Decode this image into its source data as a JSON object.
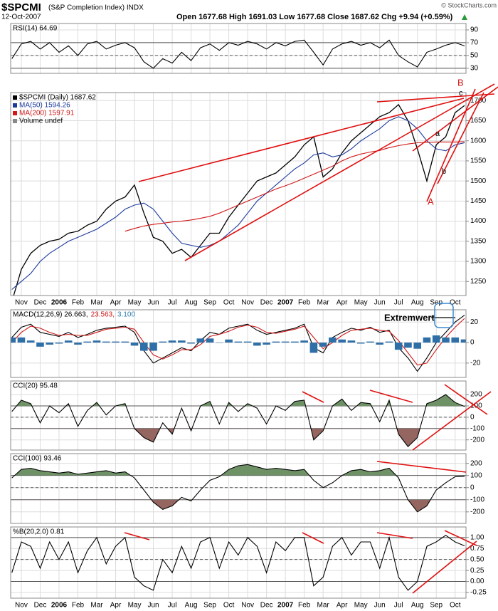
{
  "header": {
    "symbol": "$SPCMI",
    "name": "(S&P Completion Index) INDX",
    "date": "12-Oct-2007",
    "quote": "Open 1677.68 High 1691.03 Low 1677.68 Close 1687.62 Chg +9.94 (+0.59%)",
    "source": "© StockCharts.com"
  },
  "chart_data": [
    {
      "type": "line",
      "label": "RSI(14) 64.69",
      "ylim": [
        22,
        100
      ],
      "yticks": [
        30,
        50,
        70,
        90
      ],
      "grid": true,
      "hlines": [
        {
          "value": 70
        },
        {
          "value": 50,
          "dashed": true
        },
        {
          "value": 30
        }
      ],
      "series": [
        {
          "name": "RSI(14)",
          "color": "#000000",
          "values": [
            45,
            68,
            72,
            60,
            70,
            55,
            65,
            50,
            68,
            72,
            60,
            66,
            70,
            62,
            40,
            30,
            45,
            38,
            55,
            42,
            62,
            68,
            58,
            70,
            66,
            72,
            68,
            60,
            70,
            65,
            72,
            74,
            55,
            35,
            60,
            68,
            72,
            66,
            70,
            62,
            74,
            50,
            40,
            32,
            55,
            60,
            66,
            70,
            65
          ]
        }
      ]
    },
    {
      "type": "line",
      "ylim": [
        1215,
        1720
      ],
      "yticks": [
        1250,
        1300,
        1350,
        1400,
        1450,
        1500,
        1550,
        1600,
        1650,
        1700
      ],
      "grid": true,
      "categories": [
        null,
        "Nov",
        null,
        "Dec",
        null,
        "2006",
        null,
        "Feb",
        null,
        "Mar",
        null,
        "Apr",
        null,
        "May",
        null,
        "Jun",
        null,
        "Jul",
        null,
        "Aug",
        null,
        "Sep",
        null,
        "Oct",
        null,
        "Nov",
        null,
        "Dec",
        null,
        "2007",
        null,
        "Feb",
        null,
        "Mar",
        null,
        "Apr",
        null,
        "May",
        null,
        "Jun",
        null,
        "Jul",
        null,
        "Aug",
        null,
        "Sep",
        null,
        "Oct",
        null
      ],
      "legend_extra": "Volume undef",
      "annotations": [
        "A",
        "B",
        "a",
        "b",
        "c"
      ],
      "series": [
        {
          "name": "$SPCMI (Daily) 1687.62",
          "color": "#000000",
          "values": [
            1200,
            1280,
            1320,
            1340,
            1350,
            1355,
            1370,
            1375,
            1390,
            1400,
            1430,
            1450,
            1460,
            1490,
            1420,
            1360,
            1350,
            1320,
            1330,
            1310,
            1340,
            1370,
            1370,
            1410,
            1440,
            1470,
            1500,
            1510,
            1520,
            1540,
            1560,
            1590,
            1610,
            1510,
            1530,
            1570,
            1600,
            1620,
            1640,
            1660,
            1670,
            1690,
            1650,
            1580,
            1500,
            1590,
            1610,
            1670,
            1688
          ]
        },
        {
          "name": "MA(50) 1594.26",
          "color": "#1c3a9c",
          "values": [
            1230,
            1250,
            1270,
            1300,
            1320,
            1335,
            1350,
            1360,
            1370,
            1380,
            1395,
            1410,
            1430,
            1440,
            1445,
            1430,
            1400,
            1370,
            1345,
            1340,
            1335,
            1340,
            1350,
            1370,
            1390,
            1420,
            1450,
            1470,
            1490,
            1510,
            1530,
            1545,
            1565,
            1570,
            1560,
            1565,
            1580,
            1600,
            1615,
            1630,
            1650,
            1660,
            1650,
            1630,
            1600,
            1580,
            1575,
            1590,
            1595
          ]
        },
        {
          "name": "MA(200) 1597.91",
          "color": "#d01818",
          "values": [
            null,
            null,
            null,
            null,
            null,
            null,
            null,
            null,
            null,
            null,
            null,
            null,
            1375,
            1382,
            1388,
            1392,
            1395,
            1398,
            1400,
            1403,
            1407,
            1412,
            1420,
            1430,
            1440,
            1450,
            1460,
            1470,
            1480,
            1488,
            1497,
            1507,
            1517,
            1527,
            1537,
            1550,
            1560,
            1567,
            1572,
            1576,
            1583,
            1588,
            1592,
            1595,
            1596,
            1597,
            1597,
            1597,
            1598
          ]
        }
      ]
    },
    {
      "type": "line",
      "ylim": [
        -34,
        32
      ],
      "yticks": [
        -20,
        0,
        20
      ],
      "grid": true,
      "label_parts": [
        {
          "text": "MACD(12,26,9) 26.663,",
          "color": "#000000"
        },
        {
          "text": "23.563,",
          "color": "#d01818"
        },
        {
          "text": "3.100",
          "color": "#2f7fb0"
        }
      ],
      "annotations": [
        "Extremwert"
      ],
      "series": [
        {
          "name": "MACD",
          "color": "#000000",
          "style": "bar_none",
          "values": [
            5,
            15,
            18,
            10,
            8,
            6,
            10,
            5,
            8,
            12,
            14,
            15,
            16,
            10,
            -8,
            -20,
            -15,
            -10,
            -5,
            -8,
            2,
            10,
            8,
            14,
            16,
            18,
            12,
            8,
            10,
            12,
            14,
            18,
            -5,
            -10,
            5,
            10,
            14,
            12,
            15,
            10,
            12,
            -5,
            -15,
            -28,
            -15,
            0,
            10,
            20,
            26.7
          ]
        },
        {
          "name": "Signal",
          "color": "#d01818",
          "values": [
            0,
            10,
            16,
            14,
            10,
            7,
            8,
            7,
            7,
            10,
            13,
            14,
            15,
            13,
            0,
            -12,
            -16,
            -12,
            -7,
            -7,
            -2,
            6,
            8,
            11,
            15,
            17,
            15,
            10,
            9,
            11,
            13,
            16,
            5,
            -6,
            0,
            7,
            12,
            13,
            14,
            12,
            11,
            2,
            -10,
            -22,
            -20,
            -7,
            5,
            15,
            23.6
          ]
        },
        {
          "name": "Histogram",
          "color": "#2f6fa8",
          "style": "bar",
          "values": [
            5,
            5,
            2,
            -4,
            -2,
            -1,
            2,
            -2,
            1,
            2,
            1,
            1,
            1,
            -3,
            -8,
            -8,
            1,
            2,
            2,
            -1,
            4,
            4,
            0,
            3,
            1,
            1,
            -3,
            -2,
            1,
            1,
            1,
            2,
            -10,
            -4,
            5,
            3,
            2,
            -1,
            1,
            -2,
            1,
            -7,
            -5,
            -6,
            5,
            7,
            5,
            5,
            3.1
          ]
        }
      ]
    },
    {
      "type": "line",
      "label": "CCI(20) 95.48",
      "ylim": [
        -290,
        320
      ],
      "yticks": [
        -200,
        -100,
        0,
        100,
        200
      ],
      "grid": true,
      "hlines": [
        {
          "value": 100
        },
        {
          "value": 0,
          "dashed": true
        },
        {
          "value": -100
        }
      ],
      "fill_above": {
        "level": 100,
        "color": "#6e9266"
      },
      "fill_below": {
        "level": -100,
        "color": "#94665f"
      },
      "series": [
        {
          "name": "CCI(20)",
          "color": "#000000",
          "values": [
            50,
            150,
            120,
            -50,
            100,
            40,
            120,
            -80,
            60,
            130,
            20,
            100,
            120,
            -100,
            -180,
            -220,
            -50,
            -150,
            80,
            -120,
            100,
            140,
            -60,
            130,
            50,
            120,
            80,
            -60,
            100,
            60,
            140,
            150,
            -200,
            -120,
            100,
            160,
            60,
            130,
            120,
            -40,
            150,
            -150,
            -260,
            -180,
            120,
            150,
            200,
            130,
            95
          ]
        }
      ]
    },
    {
      "type": "line",
      "label": "CCI(100) 93.46",
      "ylim": [
        -295,
        280
      ],
      "yticks": [
        -200,
        -100,
        0,
        100,
        200
      ],
      "grid": true,
      "hlines": [
        {
          "value": 100
        },
        {
          "value": 0,
          "dashed": true
        },
        {
          "value": -100
        }
      ],
      "fill_above": {
        "level": 100,
        "color": "#6e9266"
      },
      "fill_below": {
        "level": -100,
        "color": "#94665f"
      },
      "series": [
        {
          "name": "CCI(100)",
          "color": "#000000",
          "values": [
            80,
            150,
            160,
            140,
            130,
            120,
            130,
            110,
            120,
            130,
            140,
            120,
            130,
            80,
            -20,
            -120,
            -180,
            -150,
            -80,
            -110,
            -20,
            60,
            90,
            150,
            180,
            190,
            170,
            150,
            160,
            150,
            140,
            150,
            60,
            0,
            40,
            100,
            140,
            150,
            130,
            140,
            160,
            80,
            -100,
            -200,
            -150,
            -20,
            40,
            90,
            93
          ]
        }
      ]
    },
    {
      "type": "line",
      "label": "%B(20,2.0) 0.81",
      "ylim": [
        -0.38,
        1.24
      ],
      "yticks": [
        -0.25,
        {
          "value": 0,
          "label": "0.00"
        },
        0.25,
        {
          "value": 0.5,
          "label": "0.50"
        },
        0.75,
        {
          "value": 1,
          "label": "1.00"
        }
      ],
      "grid": true,
      "hlines": [
        {
          "value": 1
        },
        {
          "value": 0.5,
          "dashed": true
        },
        {
          "value": 0
        }
      ],
      "categories": [
        null,
        "Nov",
        null,
        "Dec",
        null,
        "2006",
        null,
        "Feb",
        null,
        "Mar",
        null,
        "Apr",
        null,
        "May",
        null,
        "Jun",
        null,
        "Jul",
        null,
        "Aug",
        null,
        "Sep",
        null,
        "Oct",
        null,
        "Nov",
        null,
        "Dec",
        null,
        "2007",
        null,
        "Feb",
        null,
        "Mar",
        null,
        "Apr",
        null,
        "May",
        null,
        "Jun",
        null,
        "Jul",
        null,
        "Aug",
        null,
        "Sep",
        null,
        "Oct",
        null
      ],
      "series": [
        {
          "name": "%B(20,2.0)",
          "color": "#000000",
          "values": [
            0.2,
            0.9,
            0.8,
            0.3,
            0.9,
            0.5,
            0.9,
            0.2,
            0.7,
            1.0,
            0.4,
            0.8,
            1.0,
            0.1,
            -0.1,
            -0.2,
            0.5,
            0.2,
            0.8,
            0.3,
            0.9,
            1.0,
            0.3,
            0.9,
            0.6,
            1.0,
            0.8,
            0.2,
            0.9,
            0.7,
            1.0,
            1.0,
            -0.1,
            0.1,
            0.8,
            1.0,
            0.6,
            0.9,
            0.9,
            0.3,
            1.0,
            0.1,
            -0.2,
            0.0,
            0.8,
            0.9,
            1.05,
            0.9,
            0.81
          ]
        }
      ]
    }
  ]
}
